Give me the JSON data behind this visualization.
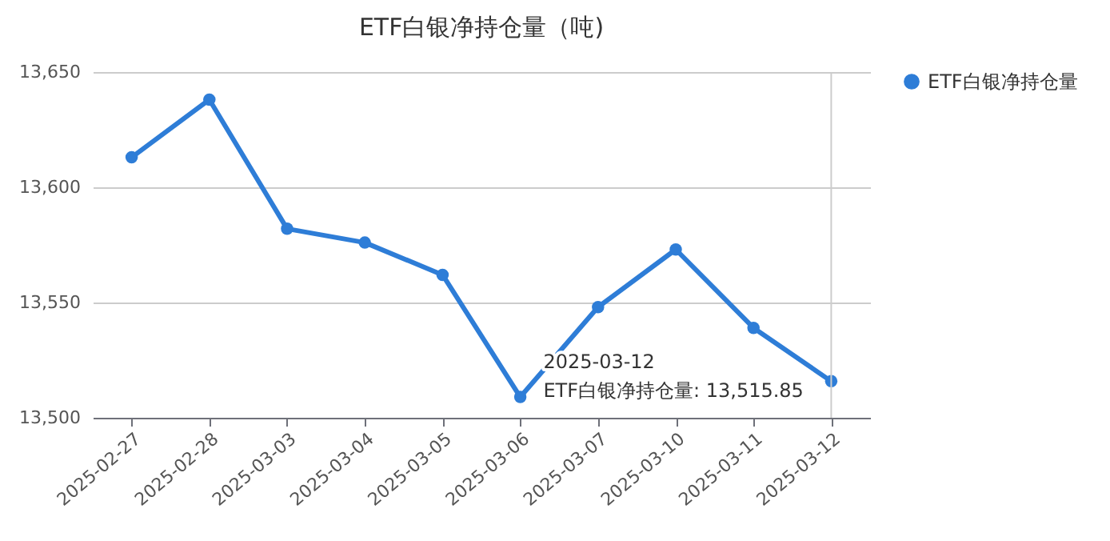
{
  "chart_data": {
    "type": "line",
    "title": "ETF白银净持仓量（吨)",
    "categories": [
      "2025-02-27",
      "2025-02-28",
      "2025-03-03",
      "2025-03-04",
      "2025-03-05",
      "2025-03-06",
      "2025-03-07",
      "2025-03-10",
      "2025-03-11",
      "2025-03-12"
    ],
    "series": [
      {
        "name": "ETF白银净持仓量",
        "color": "#2e7dd7",
        "values": [
          13613,
          13638,
          13582,
          13576,
          13562,
          13509,
          13548,
          13573,
          13539,
          13515.85
        ]
      }
    ],
    "ylim": [
      13500,
      13650
    ],
    "yticks": [
      {
        "value": 13500,
        "label": "13,500"
      },
      {
        "value": 13550,
        "label": "13,550"
      },
      {
        "value": 13600,
        "label": "13,600"
      },
      {
        "value": 13650,
        "label": "13,650"
      }
    ],
    "grid": "y",
    "legend": "right",
    "marker": "circle",
    "line_style": "solid",
    "ref_lines": [
      {
        "axis": "x",
        "value": "2025-03-12",
        "color": "#cccccc"
      }
    ],
    "annotations": [
      {
        "text": "2025-03-12\nETF白银净持仓量: 13,515.85",
        "x": "2025-03-12",
        "y": 13515.85
      }
    ]
  }
}
